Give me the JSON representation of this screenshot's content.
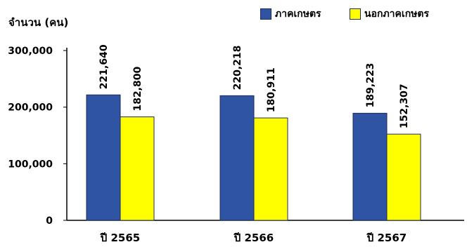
{
  "chart_data": {
    "type": "bar",
    "ylabel": "จำนวน (คน)",
    "categories": [
      "ปี 2565",
      "ปี 2566",
      "ปี 2567"
    ],
    "series": [
      {
        "name": "ภาคเกษตร",
        "color": "#2e54a3",
        "values": [
          221640,
          220218,
          189223
        ],
        "labels": [
          "221,640",
          "220,218",
          "189,223"
        ]
      },
      {
        "name": "นอกภาคเกษตร",
        "color": "#ffff00",
        "values": [
          182800,
          180911,
          152307
        ],
        "labels": [
          "182,800",
          "180,911",
          "152,307"
        ]
      }
    ],
    "ylim": [
      0,
      300000
    ],
    "yticks": [
      {
        "value": 0,
        "label": "0"
      },
      {
        "value": 100000,
        "label": "100,000"
      },
      {
        "value": 200000,
        "label": "200,000"
      },
      {
        "value": 300000,
        "label": "300,000"
      }
    ],
    "grid": false,
    "legend_position": "top-right"
  }
}
